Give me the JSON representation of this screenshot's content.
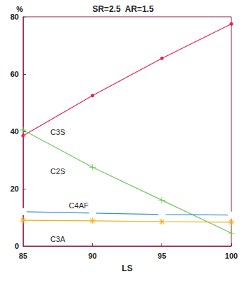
{
  "chart_data": {
    "type": "line",
    "title": "SR=2.5  AR=1.5",
    "x_label": "LS",
    "y_label": "%",
    "x": [
      85,
      90,
      95,
      100
    ],
    "series": [
      {
        "name": "C3S",
        "color": "#e8204a",
        "marker": "circle",
        "values": [
          38.5,
          52.5,
          65.5,
          77.5
        ]
      },
      {
        "name": "C2S",
        "color": "#6cc85a",
        "marker": "plus",
        "values": [
          40.5,
          27.5,
          16,
          4.5
        ]
      },
      {
        "name": "C4AF",
        "color": "#3a8fd8",
        "marker": "square",
        "values": [
          12,
          11.5,
          11,
          10.8
        ]
      },
      {
        "name": "C3A",
        "color": "#f0b020",
        "marker": "asterisk",
        "values": [
          9,
          8.8,
          8.5,
          8.3
        ]
      }
    ],
    "xlim": [
      85,
      100
    ],
    "ylim": [
      0,
      80
    ],
    "xticks": [
      85,
      90,
      95,
      100
    ],
    "yticks": [
      0,
      20,
      40,
      60,
      80
    ],
    "grid": false
  }
}
